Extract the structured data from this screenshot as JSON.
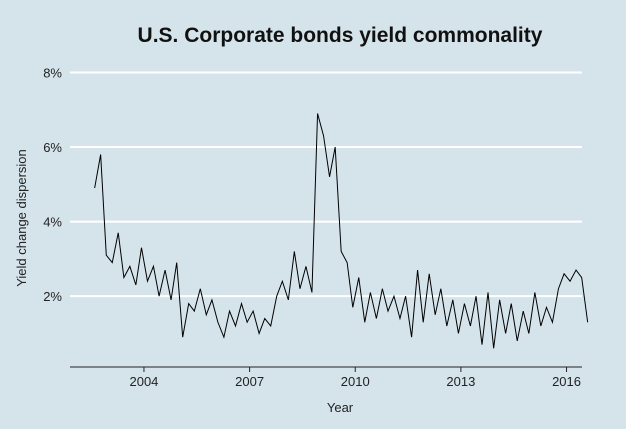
{
  "chart_data": {
    "type": "line",
    "title": "U.S. Corporate bonds yield commonality",
    "x_label": "Year",
    "y_label": "Yield change dispersion",
    "xlim": [
      2001.9,
      2016.95
    ],
    "ylim": [
      0.1,
      8.2
    ],
    "xticks": [
      2004,
      2007,
      2010,
      2013,
      2016
    ],
    "yticks": [
      {
        "value": 2,
        "label": "2%"
      },
      {
        "value": 4,
        "label": "4%"
      },
      {
        "value": 6,
        "label": "6%"
      },
      {
        "value": 8,
        "label": "8%"
      }
    ],
    "grid": true,
    "background": "#d5e4eb",
    "x": [
      2002.6,
      2002.77,
      2002.93,
      2003.1,
      2003.27,
      2003.43,
      2003.6,
      2003.77,
      2003.93,
      2004.1,
      2004.27,
      2004.43,
      2004.6,
      2004.77,
      2004.93,
      2005.1,
      2005.27,
      2005.43,
      2005.6,
      2005.77,
      2005.93,
      2006.1,
      2006.27,
      2006.43,
      2006.6,
      2006.77,
      2006.93,
      2007.1,
      2007.27,
      2007.43,
      2007.6,
      2007.77,
      2007.93,
      2008.1,
      2008.27,
      2008.43,
      2008.6,
      2008.77,
      2008.93,
      2009.1,
      2009.27,
      2009.43,
      2009.6,
      2009.77,
      2009.93,
      2010.1,
      2010.27,
      2010.43,
      2010.6,
      2010.77,
      2010.93,
      2011.1,
      2011.27,
      2011.43,
      2011.6,
      2011.77,
      2011.93,
      2012.1,
      2012.27,
      2012.43,
      2012.6,
      2012.77,
      2012.93,
      2013.1,
      2013.27,
      2013.43,
      2013.6,
      2013.77,
      2013.93,
      2014.1,
      2014.27,
      2014.43,
      2014.6,
      2014.77,
      2014.93,
      2015.1,
      2015.27,
      2015.43,
      2015.6,
      2015.77,
      2015.93,
      2016.1,
      2016.27,
      2016.43,
      2016.6
    ],
    "series": [
      {
        "color": "#000000",
        "values": [
          4.9,
          5.8,
          3.1,
          2.9,
          3.7,
          2.5,
          2.8,
          2.3,
          3.3,
          2.4,
          2.8,
          2.0,
          2.7,
          1.9,
          2.9,
          0.9,
          1.8,
          1.6,
          2.2,
          1.5,
          1.9,
          1.3,
          0.9,
          1.6,
          1.2,
          1.8,
          1.3,
          1.6,
          1.0,
          1.4,
          1.2,
          2.0,
          2.4,
          1.9,
          3.2,
          2.2,
          2.8,
          2.1,
          6.9,
          6.3,
          5.2,
          6.0,
          3.2,
          2.9,
          1.7,
          2.5,
          1.3,
          2.1,
          1.4,
          2.2,
          1.6,
          2.0,
          1.4,
          2.0,
          0.9,
          2.7,
          1.3,
          2.6,
          1.5,
          2.2,
          1.2,
          1.9,
          1.0,
          1.8,
          1.2,
          2.0,
          0.7,
          2.1,
          0.6,
          1.9,
          1.0,
          1.8,
          0.8,
          1.6,
          1.0,
          2.1,
          1.2,
          1.7,
          1.3,
          2.2,
          2.6,
          2.4,
          2.7,
          2.5,
          1.3
        ]
      }
    ]
  }
}
